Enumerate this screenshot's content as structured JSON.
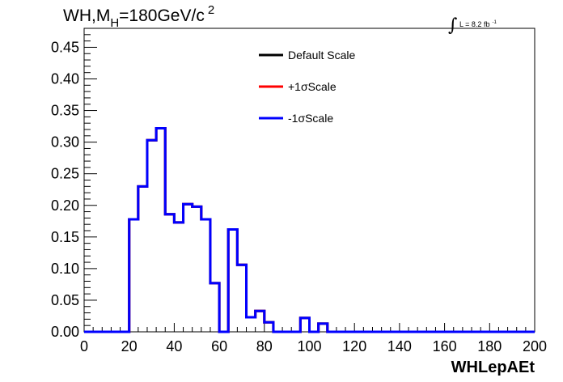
{
  "chart_data": {
    "type": "line",
    "title": {
      "prefix": "WH,M",
      "subscript": "H",
      "middle": "=180GeV/c",
      "superscript": "2"
    },
    "lumi": {
      "integral_symbol": "∫",
      "text": "L = 8.2 fb",
      "superscript": "-1"
    },
    "xlabel": "WHLepAEt",
    "ylabel": "",
    "xlim": [
      0,
      200
    ],
    "ylim": [
      0,
      0.48
    ],
    "x_ticks": [
      0,
      20,
      40,
      60,
      80,
      100,
      120,
      140,
      160,
      180,
      200
    ],
    "x_tick_labels": [
      "0",
      "20",
      "40",
      "60",
      "80",
      "100",
      "120",
      "140",
      "160",
      "180",
      "200"
    ],
    "y_ticks": [
      0,
      0.05,
      0.1,
      0.15,
      0.2,
      0.25,
      0.3,
      0.35,
      0.4,
      0.45
    ],
    "y_tick_labels": [
      "0.00",
      "0.05",
      "0.10",
      "0.15",
      "0.20",
      "0.25",
      "0.30",
      "0.35",
      "0.40",
      "0.45"
    ],
    "grid": false,
    "legend_position": "top-center",
    "bin_width": 4,
    "bin_edges_start": 0,
    "series": [
      {
        "name": "Default Scale",
        "color": "#000000",
        "values": [
          0,
          0,
          0,
          0,
          0,
          0.178,
          0.23,
          0.303,
          0.322,
          0.186,
          0.173,
          0.202,
          0.198,
          0.178,
          0.077,
          0,
          0.162,
          0.106,
          0.023,
          0.033,
          0.015,
          0,
          0,
          0,
          0.022,
          0,
          0.013,
          0,
          0,
          0,
          0,
          0,
          0,
          0,
          0,
          0,
          0,
          0,
          0,
          0,
          0,
          0,
          0,
          0,
          0,
          0,
          0,
          0,
          0,
          0
        ]
      },
      {
        "name": "+1σScale",
        "color": "#ff0000",
        "values": [
          0,
          0,
          0,
          0,
          0,
          0.178,
          0.23,
          0.303,
          0.322,
          0.186,
          0.173,
          0.202,
          0.198,
          0.178,
          0.077,
          0,
          0.162,
          0.106,
          0.023,
          0.033,
          0.015,
          0,
          0,
          0,
          0.022,
          0,
          0.013,
          0,
          0,
          0,
          0,
          0,
          0,
          0,
          0,
          0,
          0,
          0,
          0,
          0,
          0,
          0,
          0,
          0,
          0,
          0,
          0,
          0,
          0,
          0
        ]
      },
      {
        "name": "-1σScale",
        "color": "#0000ff",
        "values": [
          0,
          0,
          0,
          0,
          0,
          0.178,
          0.23,
          0.303,
          0.322,
          0.186,
          0.173,
          0.202,
          0.198,
          0.178,
          0.077,
          0,
          0.162,
          0.106,
          0.023,
          0.033,
          0.015,
          0,
          0,
          0,
          0.022,
          0,
          0.013,
          0,
          0,
          0,
          0,
          0,
          0,
          0,
          0,
          0,
          0,
          0,
          0,
          0,
          0,
          0,
          0,
          0,
          0,
          0,
          0,
          0,
          0,
          0
        ]
      }
    ]
  }
}
